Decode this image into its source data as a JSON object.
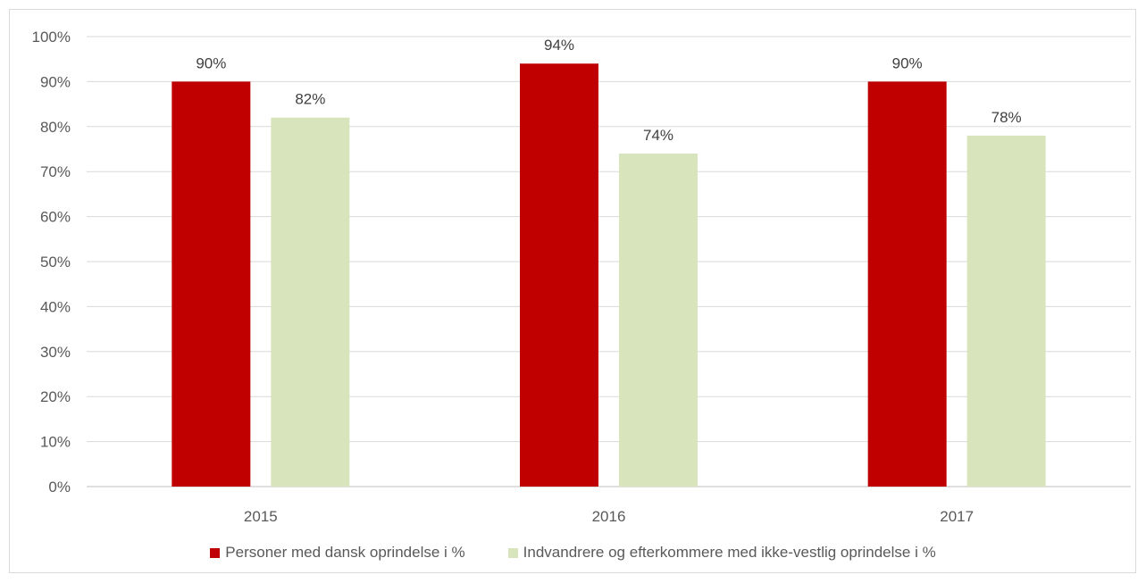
{
  "chart_data": {
    "type": "bar",
    "categories": [
      "2015",
      "2016",
      "2017"
    ],
    "series": [
      {
        "name": "Personer med dansk oprindelse i %",
        "values": [
          90,
          94,
          90
        ],
        "labels": [
          "90%",
          "94%",
          "90%"
        ],
        "color": "#c00000"
      },
      {
        "name": "Indvandrere og efterkommere med ikke-vestlig oprindelse i %",
        "values": [
          82,
          74,
          78
        ],
        "labels": [
          "82%",
          "74%",
          "78%"
        ],
        "color": "#d8e4bc"
      }
    ],
    "ylim": [
      0,
      100
    ],
    "yticks": [
      "0%",
      "10%",
      "20%",
      "30%",
      "40%",
      "50%",
      "60%",
      "70%",
      "80%",
      "90%",
      "100%"
    ],
    "grid": true,
    "legend_position": "bottom",
    "title": "",
    "xlabel": "",
    "ylabel": ""
  }
}
